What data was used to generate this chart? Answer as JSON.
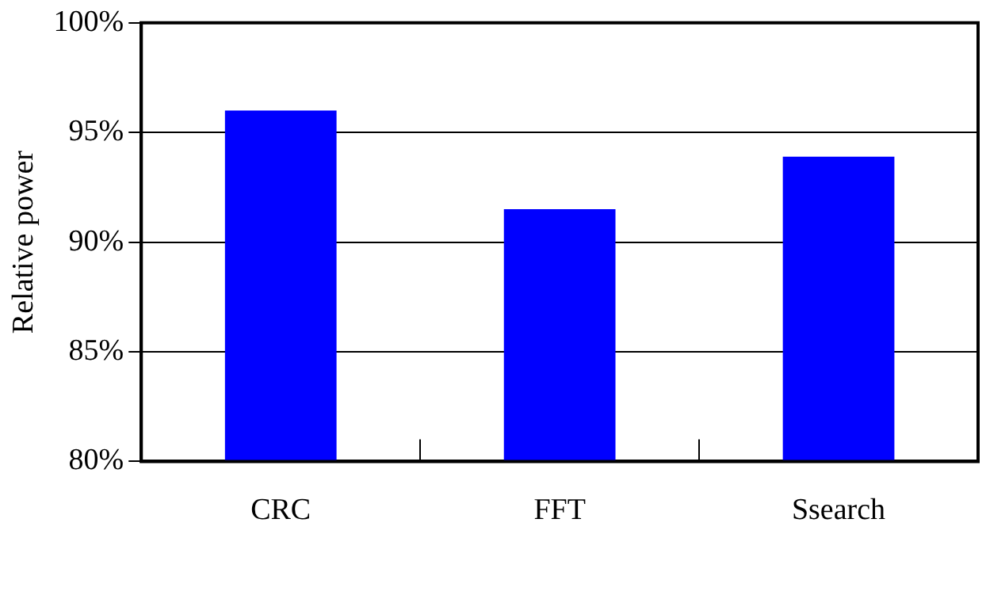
{
  "chart_data": {
    "type": "bar",
    "ylabel": "Relative power",
    "categories": [
      "CRC",
      "FFT",
      "Ssearch"
    ],
    "values": [
      96.0,
      91.5,
      93.9
    ],
    "color": "#0000ff",
    "ylim": [
      80,
      100
    ],
    "yticks": [
      {
        "value": 80,
        "label": "80%"
      },
      {
        "value": 85,
        "label": "85%"
      },
      {
        "value": 90,
        "label": "90%"
      },
      {
        "value": 95,
        "label": "95%"
      },
      {
        "value": 100,
        "label": "100%"
      }
    ],
    "grid": "y"
  }
}
